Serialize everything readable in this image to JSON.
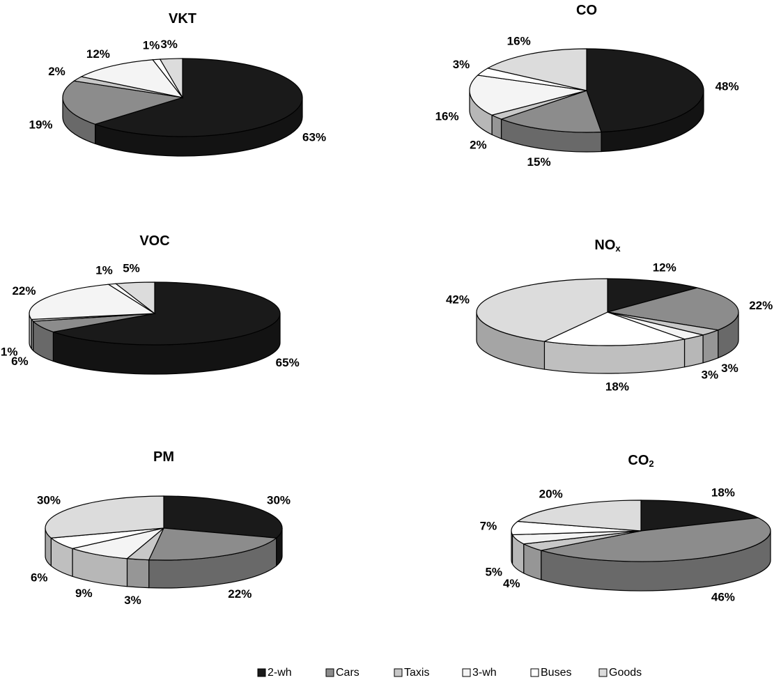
{
  "chart_data": [
    {
      "type": "pie",
      "title": "VKT",
      "categories": [
        "2-wh",
        "Cars",
        "Taxis",
        "3-wh",
        "Buses",
        "Goods"
      ],
      "values": [
        63,
        19,
        2,
        12,
        1,
        3
      ],
      "value_labels": [
        "63%",
        "19%",
        "2%",
        "12%",
        "1%",
        "3%"
      ],
      "colors": [
        "#1a1a1a",
        "#8c8c8c",
        "#c8c8c8",
        "#f4f4f4",
        "#ffffff",
        "#dcdcdc"
      ]
    },
    {
      "type": "pie",
      "title": "CO",
      "categories": [
        "2-wh",
        "Cars",
        "Taxis",
        "3-wh",
        "Buses",
        "Goods"
      ],
      "values": [
        48,
        15,
        2,
        16,
        3,
        16
      ],
      "value_labels": [
        "48%",
        "15%",
        "2%",
        "16%",
        "3%",
        "16%"
      ],
      "colors": [
        "#1a1a1a",
        "#8c8c8c",
        "#c8c8c8",
        "#f4f4f4",
        "#ffffff",
        "#dcdcdc"
      ]
    },
    {
      "type": "pie",
      "title": "VOC",
      "categories": [
        "2-wh",
        "Cars",
        "Taxis",
        "3-wh",
        "Buses",
        "Goods"
      ],
      "values": [
        65,
        6,
        1,
        22,
        1,
        5
      ],
      "value_labels": [
        "65%",
        "6%",
        "1%",
        "22%",
        "1%",
        "5%"
      ],
      "colors": [
        "#1a1a1a",
        "#8c8c8c",
        "#c8c8c8",
        "#f4f4f4",
        "#ffffff",
        "#dcdcdc"
      ]
    },
    {
      "type": "pie",
      "title": "NO",
      "title_subscript": "x",
      "categories": [
        "2-wh",
        "Cars",
        "Taxis",
        "3-wh",
        "Buses",
        "Goods"
      ],
      "values": [
        12,
        22,
        3,
        3,
        18,
        42
      ],
      "value_labels": [
        "12%",
        "22%",
        "3%",
        "3%",
        "18%",
        "42%"
      ],
      "colors": [
        "#1a1a1a",
        "#8c8c8c",
        "#c8c8c8",
        "#f4f4f4",
        "#ffffff",
        "#dcdcdc"
      ]
    },
    {
      "type": "pie",
      "title": "PM",
      "categories": [
        "2-wh",
        "Cars",
        "Taxis",
        "3-wh",
        "Buses",
        "Goods"
      ],
      "values": [
        30,
        22,
        3,
        9,
        6,
        30
      ],
      "value_labels": [
        "30%",
        "22%",
        "3%",
        "9%",
        "6%",
        "30%"
      ],
      "colors": [
        "#1a1a1a",
        "#8c8c8c",
        "#c8c8c8",
        "#f4f4f4",
        "#ffffff",
        "#dcdcdc"
      ]
    },
    {
      "type": "pie",
      "title": "CO",
      "title_subscript": "2",
      "categories": [
        "2-wh",
        "Cars",
        "Taxis",
        "3-wh",
        "Buses",
        "Goods"
      ],
      "values": [
        18,
        46,
        4,
        5,
        7,
        20
      ],
      "value_labels": [
        "18%",
        "46%",
        "4%",
        "5%",
        "7%",
        "20%"
      ],
      "colors": [
        "#1a1a1a",
        "#8c8c8c",
        "#c8c8c8",
        "#f4f4f4",
        "#ffffff",
        "#dcdcdc"
      ]
    }
  ]
}
